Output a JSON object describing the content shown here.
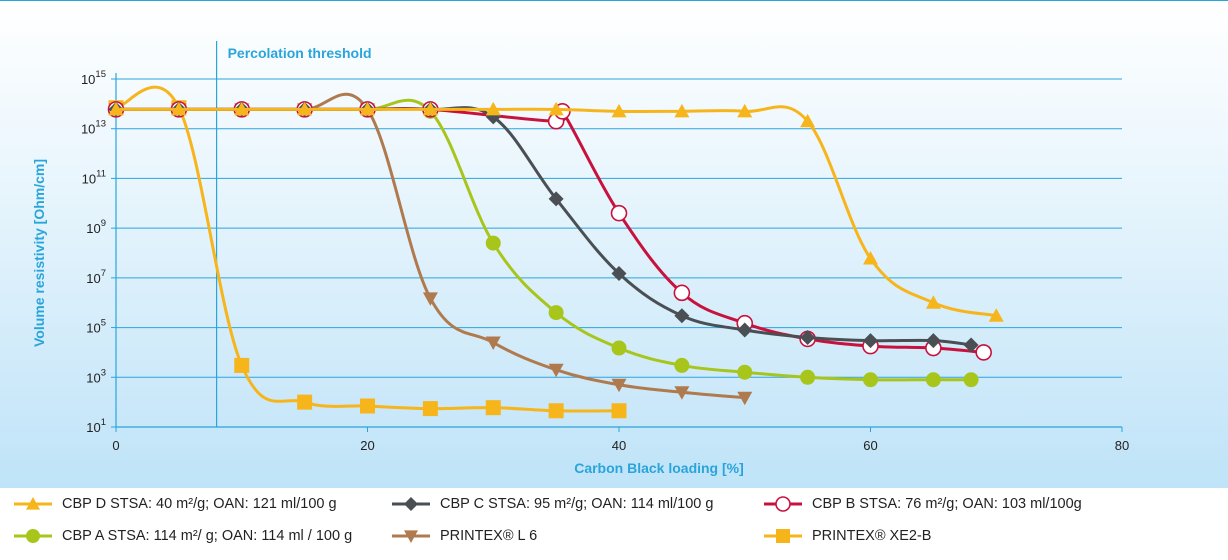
{
  "chart_data": {
    "type": "line",
    "xlabel": "Carbon Black loading [%]",
    "ylabel": "Volume resistivity [Ohm/cm]",
    "xlim": [
      0,
      80
    ],
    "ylim": [
      10,
      1000000000000000.0
    ],
    "yscale": "log",
    "x_ticks": [
      "0",
      "20",
      "40",
      "60",
      "80"
    ],
    "y_tick_exponents": [
      "1",
      "3",
      "5",
      "7",
      "9",
      "11",
      "13",
      "15"
    ],
    "y_tick_base": "10",
    "grid": "horizontal",
    "legend_position": "bottom",
    "annotation": {
      "text": "Percolation threshold",
      "x": 8
    },
    "series": [
      {
        "name": "CBP D STSA: 40 m²/g; OAN: 121 ml/100 g",
        "color": "#f7b51c",
        "marker": "triangle-up",
        "x": [
          0,
          5,
          10,
          15,
          20,
          25,
          30,
          35,
          40,
          45,
          50,
          55,
          60,
          65,
          70
        ],
        "y": [
          60000000000000.0,
          60000000000000.0,
          60000000000000.0,
          60000000000000.0,
          60000000000000.0,
          60000000000000.0,
          60000000000000.0,
          60000000000000.0,
          50000000000000.0,
          50000000000000.0,
          50000000000000.0,
          20000000000000.0,
          60000000.0,
          1000000.0,
          300000.0
        ]
      },
      {
        "name": "CBP C STSA: 95 m²/g; OAN: 114 ml/100 g",
        "color": "#4a4f54",
        "marker": "diamond",
        "x": [
          0,
          5,
          10,
          15,
          20,
          25,
          30,
          35,
          40,
          45,
          50,
          55,
          60,
          65,
          68
        ],
        "y": [
          60000000000000.0,
          60000000000000.0,
          60000000000000.0,
          60000000000000.0,
          60000000000000.0,
          60000000000000.0,
          30000000000000.0,
          15000000000.0,
          15000000.0,
          300000.0,
          80000.0,
          40000.0,
          30000.0,
          30000.0,
          20000.0
        ]
      },
      {
        "name": "CBP B STSA: 76 m²/g; OAN: 103 ml/100g",
        "color": "#c8123e",
        "marker": "circle-open",
        "x": [
          0,
          5,
          10,
          15,
          20,
          25,
          35,
          35.5,
          40,
          45,
          50,
          55,
          60,
          65,
          69
        ],
        "y": [
          60000000000000.0,
          60000000000000.0,
          60000000000000.0,
          60000000000000.0,
          60000000000000.0,
          60000000000000.0,
          20000000000000.0,
          50000000000000.0,
          4000000000.0,
          2500000.0,
          150000.0,
          35000.0,
          18000.0,
          15000.0,
          10000.0
        ]
      },
      {
        "name": "CBP A STSA: 114 m²/ g; OAN: 114 ml / 100 g",
        "color": "#a8c51c",
        "marker": "circle",
        "x": [
          0,
          5,
          10,
          15,
          20,
          25,
          30,
          35,
          40,
          45,
          50,
          55,
          60,
          65,
          68
        ],
        "y": [
          60000000000000.0,
          60000000000000.0,
          60000000000000.0,
          60000000000000.0,
          60000000000000.0,
          50000000000000.0,
          250000000.0,
          400000.0,
          15000.0,
          3000.0,
          1600.0,
          1000.0,
          800,
          800,
          800
        ]
      },
      {
        "name": "PRINTEX® L 6",
        "color": "#b07a4f",
        "marker": "triangle-down",
        "x": [
          0,
          5,
          10,
          15,
          20,
          25,
          30,
          35,
          40,
          45,
          50
        ],
        "y": [
          60000000000000.0,
          60000000000000.0,
          60000000000000.0,
          60000000000000.0,
          60000000000000.0,
          1500000.0,
          25000.0,
          2000.0,
          500,
          250,
          150
        ]
      },
      {
        "name": "PRINTEX® XE2-B",
        "color": "#f7b51c",
        "marker": "square",
        "x": [
          0,
          5,
          10,
          15,
          20,
          25,
          30,
          35,
          40
        ],
        "y": [
          70000000000000.0,
          70000000000000.0,
          3000.0,
          100,
          70,
          55,
          60,
          45,
          45
        ]
      }
    ]
  }
}
